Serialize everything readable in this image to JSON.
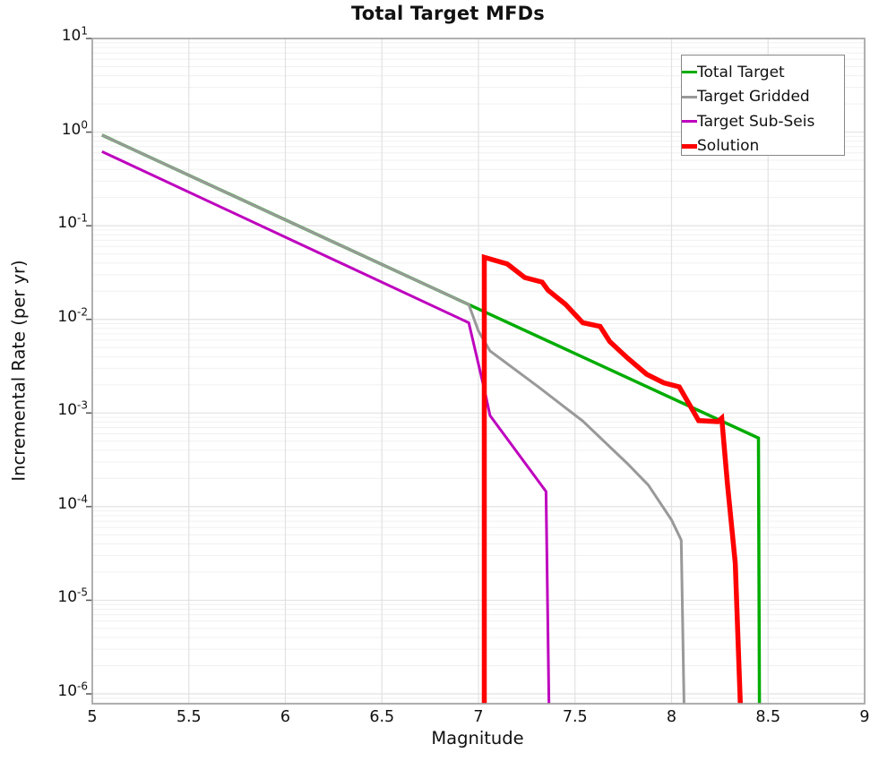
{
  "chart_data": {
    "type": "line",
    "title": "Total Target MFDs",
    "xlabel": "Magnitude",
    "ylabel": "Incremental Rate (per yr)",
    "x_axis": {
      "min": 5,
      "max": 9,
      "ticks": [
        5,
        5.5,
        6,
        6.5,
        7,
        7.5,
        8,
        8.5,
        9
      ],
      "tick_labels": [
        "5",
        "5.5",
        "6",
        "6.5",
        "7",
        "7.5",
        "8",
        "8.5",
        "9"
      ],
      "gridline_step": 0.5
    },
    "y_axis": {
      "scale": "log",
      "tick_base": "10",
      "tick_exps": [
        1,
        0,
        -1,
        -2,
        -3,
        -4,
        -5,
        -6
      ],
      "top_exp": 1,
      "bottom_exp": -6.105
    },
    "grid": {
      "show": true,
      "major_color": "#e2e2e2",
      "minor_color": "#f0f0f0"
    },
    "axis_border_color": "#a3a3a3",
    "tick_mark_color": "#555555",
    "legend_position": "top-right",
    "note": "points are [magnitude, incremental rate/yr]; rate 0 means the curve falls off the bottom of the log axis",
    "series": [
      {
        "name": "Total Target",
        "color": "#00AC00",
        "width": 3.5,
        "points": [
          [
            5.05,
            0.93
          ],
          [
            6.95,
            0.0144
          ],
          [
            8.45,
            0.00054
          ],
          [
            8.455,
            0
          ]
        ]
      },
      {
        "name": "Target Gridded",
        "color": "#999999",
        "width": 3,
        "points": [
          [
            5.05,
            0.93
          ],
          [
            6.95,
            0.0144
          ],
          [
            7.0,
            0.0075
          ],
          [
            7.06,
            0.0046
          ],
          [
            7.31,
            0.0019
          ],
          [
            7.54,
            0.00082
          ],
          [
            7.77,
            0.00029
          ],
          [
            7.88,
            0.00017
          ],
          [
            8.0,
            7.2e-05
          ],
          [
            8.05,
            4.4e-05
          ],
          [
            8.065,
            0
          ]
        ]
      },
      {
        "name": "Target Sub-Seis",
        "color": "#BE00BE",
        "width": 3,
        "points": [
          [
            5.05,
            0.62
          ],
          [
            6.95,
            0.0092
          ],
          [
            7.03,
            0.0018
          ],
          [
            7.06,
            0.00094
          ],
          [
            7.35,
            0.000145
          ],
          [
            7.365,
            0
          ]
        ]
      },
      {
        "name": "Solution",
        "color": "#FF0000",
        "width": 5.5,
        "points": [
          [
            7.03,
            0
          ],
          [
            7.03,
            0.046
          ],
          [
            7.15,
            0.039
          ],
          [
            7.24,
            0.028
          ],
          [
            7.33,
            0.025
          ],
          [
            7.36,
            0.0205
          ],
          [
            7.45,
            0.0145
          ],
          [
            7.54,
            0.0092
          ],
          [
            7.63,
            0.0084
          ],
          [
            7.68,
            0.0058
          ],
          [
            7.77,
            0.0039
          ],
          [
            7.87,
            0.0026
          ],
          [
            7.96,
            0.0021
          ],
          [
            8.04,
            0.0019
          ],
          [
            8.14,
            0.00083
          ],
          [
            8.24,
            0.00081
          ],
          [
            8.26,
            0.00088
          ],
          [
            8.29,
            0.00017
          ],
          [
            8.33,
            2.5e-05
          ],
          [
            8.357,
            0
          ]
        ]
      }
    ]
  }
}
